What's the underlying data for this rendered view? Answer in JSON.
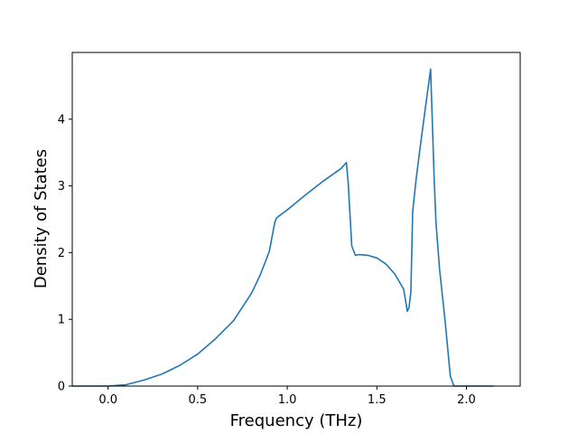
{
  "chart_data": {
    "type": "line",
    "title": "",
    "xlabel": "Frequency (THz)",
    "ylabel": "Density of States",
    "xlim": [
      -0.2,
      2.3
    ],
    "ylim": [
      0,
      5.0
    ],
    "grid": false,
    "x_ticks": [
      0.0,
      0.5,
      1.0,
      1.5,
      2.0
    ],
    "x_tick_labels": [
      "0.0",
      "0.5",
      "1.0",
      "1.5",
      "2.0"
    ],
    "y_ticks": [
      0,
      1,
      2,
      3,
      4
    ],
    "y_tick_labels": [
      "0",
      "1",
      "2",
      "3",
      "4"
    ],
    "colors": {
      "line": "#1f77b4"
    },
    "series": [
      {
        "x": [
          -0.2,
          0.0,
          0.1,
          0.2,
          0.3,
          0.4,
          0.5,
          0.6,
          0.7,
          0.8,
          0.85,
          0.9,
          0.93,
          0.94,
          0.96,
          1.0,
          1.1,
          1.2,
          1.3,
          1.33,
          1.34,
          1.36,
          1.38,
          1.4,
          1.45,
          1.5,
          1.55,
          1.6,
          1.65,
          1.67,
          1.68,
          1.69,
          1.7,
          1.72,
          1.75,
          1.78,
          1.8,
          1.82,
          1.83,
          1.85,
          1.88,
          1.91,
          1.93,
          1.95,
          1.96,
          2.0,
          2.15
        ],
        "y": [
          0.0,
          0.0,
          0.02,
          0.09,
          0.18,
          0.31,
          0.48,
          0.71,
          0.98,
          1.39,
          1.67,
          2.02,
          2.45,
          2.52,
          2.56,
          2.64,
          2.86,
          3.07,
          3.26,
          3.35,
          3.05,
          2.1,
          1.96,
          1.97,
          1.96,
          1.92,
          1.83,
          1.68,
          1.45,
          1.12,
          1.18,
          1.42,
          2.62,
          3.12,
          3.75,
          4.35,
          4.75,
          3.1,
          2.45,
          1.75,
          1.0,
          0.15,
          0.0,
          0.0,
          0.0,
          0.0,
          0.0
        ]
      }
    ]
  }
}
